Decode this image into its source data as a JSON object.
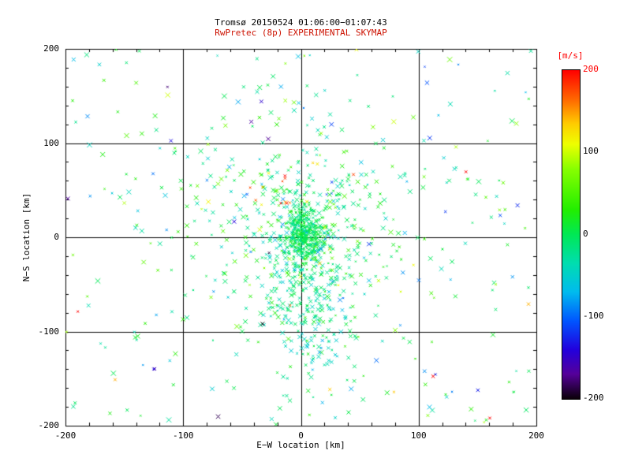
{
  "title": {
    "line1": "Tromsø 20150524 01:06:00−01:07:43",
    "line2": "RwPretec (8p) EXPERIMENTAL SKYMAP"
  },
  "colors": {
    "background": "#ffffff",
    "axis": "#000000",
    "title_line1": "#000000",
    "title_line2": "#cc1100",
    "colorbar_title": "#ff0000"
  },
  "axes": {
    "xlabel": "E−W location [km]",
    "ylabel": "N−S location [km]",
    "x_ticks": [
      {
        "v": -200,
        "label": "-200"
      },
      {
        "v": -100,
        "label": "-100"
      },
      {
        "v": 0,
        "label": "0"
      },
      {
        "v": 100,
        "label": "100"
      },
      {
        "v": 200,
        "label": "200"
      }
    ],
    "y_ticks": [
      {
        "v": -200,
        "label": "-200"
      },
      {
        "v": -100,
        "label": "-100"
      },
      {
        "v": 0,
        "label": "0"
      },
      {
        "v": 100,
        "label": "100"
      },
      {
        "v": 200,
        "label": "200"
      }
    ]
  },
  "colorbar": {
    "title": "[m/s]",
    "ticks": [
      {
        "v": 200,
        "label": "200",
        "color": "#ff0000"
      },
      {
        "v": 100,
        "label": "100",
        "color": "#000000"
      },
      {
        "v": 0,
        "label": "0",
        "color": "#000000"
      },
      {
        "v": -100,
        "label": "-100",
        "color": "#000000"
      },
      {
        "v": -200,
        "label": "-200",
        "color": "#000000"
      }
    ]
  },
  "chart_data": {
    "type": "scatter",
    "title": "Tromsø 20150524 01:06:00−01:07:43 / RwPretec (8p) EXPERIMENTAL SKYMAP",
    "xlabel": "E−W location [km]",
    "ylabel": "N−S location [km]",
    "xlim": [
      -200,
      200
    ],
    "ylim": [
      -200,
      200
    ],
    "gridlines": [
      -100,
      0,
      100
    ],
    "minor_tick_interval": 20,
    "marker": "x",
    "color_variable": "Doppler velocity [m/s]",
    "color_range": [
      -200,
      200
    ],
    "colormap_stops": [
      {
        "v": 200,
        "color": "#ff0000"
      },
      {
        "v": 165,
        "color": "#ff6600"
      },
      {
        "v": 135,
        "color": "#ffcc00"
      },
      {
        "v": 110,
        "color": "#eeff00"
      },
      {
        "v": 80,
        "color": "#88ff00"
      },
      {
        "v": 30,
        "color": "#22ee00"
      },
      {
        "v": 0,
        "color": "#00e855"
      },
      {
        "v": -35,
        "color": "#00ddb0"
      },
      {
        "v": -70,
        "color": "#00bbee"
      },
      {
        "v": -105,
        "color": "#0055ff"
      },
      {
        "v": -140,
        "color": "#2200dd"
      },
      {
        "v": -170,
        "color": "#550099"
      },
      {
        "v": -200,
        "color": "#0a0008"
      }
    ],
    "seed": 20150524,
    "point_clusters": [
      {
        "shape": "gauss",
        "cx": 2,
        "cy": 2,
        "sx": 8,
        "sy": 14,
        "count": 420,
        "v_mean": 0,
        "v_sd": 14,
        "size_min": 1.5,
        "size_max": 4
      },
      {
        "shape": "gauss",
        "cx": 8,
        "cy": -40,
        "sx": 22,
        "sy": 60,
        "count": 480,
        "v_mean": -18,
        "v_sd": 28,
        "size_min": 2,
        "size_max": 6
      },
      {
        "shape": "gauss",
        "cx": -5,
        "cy": 25,
        "sx": 60,
        "sy": 50,
        "count": 260,
        "v_mean": 5,
        "v_sd": 40,
        "size_min": 2,
        "size_max": 6
      },
      {
        "shape": "uniform",
        "x0": -200,
        "x1": 200,
        "y0": -200,
        "y1": 200,
        "count": 240,
        "v_mean": -5,
        "v_sd": 60,
        "size_min": 2,
        "size_max": 6.5
      },
      {
        "shape": "uniform",
        "x0": -200,
        "x1": 200,
        "y0": -200,
        "y1": 200,
        "count": 26,
        "v_mean": 0,
        "v_sd": 190,
        "size_min": 2.5,
        "size_max": 5.5
      },
      {
        "shape": "gauss",
        "cx": -15,
        "cy": 58,
        "sx": 28,
        "sy": 14,
        "count": 18,
        "v_mean": 130,
        "v_sd": 70,
        "size_min": 2,
        "size_max": 5
      }
    ]
  }
}
